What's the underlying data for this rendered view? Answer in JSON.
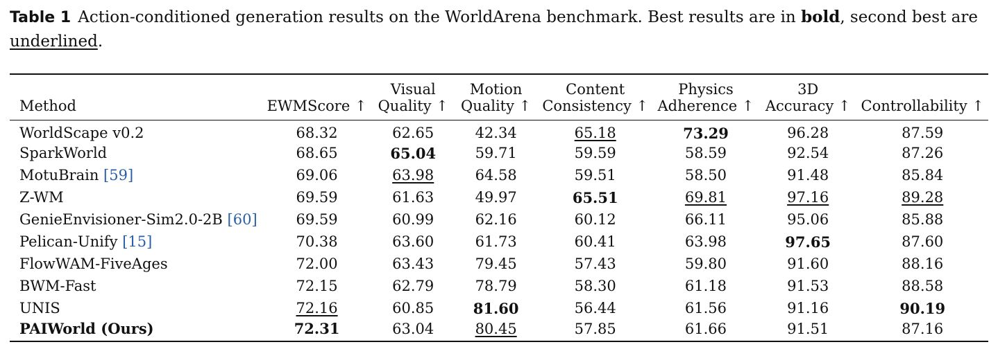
{
  "caption": {
    "label": "Table 1",
    "text_1": "Action-conditioned generation results on the WorldArena benchmark. Best results are in ",
    "bold_word": "bold",
    "text_2": ", second best are ",
    "underline_word": "underlined",
    "text_3": "."
  },
  "headers": {
    "method": "Method",
    "ewm_score": "EWMScore ↑",
    "visual_quality_1": "Visual",
    "visual_quality_2": "Quality ↑",
    "motion_quality_1": "Motion",
    "motion_quality_2": "Quality ↑",
    "content_consistency_1": "Content",
    "content_consistency_2": "Consistency ↑",
    "physics_adherence_1": "Physics",
    "physics_adherence_2": "Adherence ↑",
    "accuracy_3d_1": "3D",
    "accuracy_3d_2": "Accuracy ↑",
    "controllability": "Controllability ↑"
  },
  "rows": [
    {
      "method": "WorldScape v0.2",
      "cite": "",
      "ewm": "68.32",
      "visual": "62.65",
      "motion": "42.34",
      "content": "65.18",
      "physics": "73.29",
      "acc3d": "96.28",
      "control": "87.59"
    },
    {
      "method": "SparkWorld",
      "cite": "",
      "ewm": "68.65",
      "visual": "65.04",
      "motion": "59.71",
      "content": "59.59",
      "physics": "58.59",
      "acc3d": "92.54",
      "control": "87.26"
    },
    {
      "method": "MotuBrain",
      "cite": "[59]",
      "ewm": "69.06",
      "visual": "63.98",
      "motion": "64.58",
      "content": "59.51",
      "physics": "58.50",
      "acc3d": "91.48",
      "control": "85.84"
    },
    {
      "method": "Z-WM",
      "cite": "",
      "ewm": "69.59",
      "visual": "61.63",
      "motion": "49.97",
      "content": "65.51",
      "physics": "69.81",
      "acc3d": "97.16",
      "control": "89.28"
    },
    {
      "method": "GenieEnvisioner-Sim2.0-2B",
      "cite": "[60]",
      "ewm": "69.59",
      "visual": "60.99",
      "motion": "62.16",
      "content": "60.12",
      "physics": "66.11",
      "acc3d": "95.06",
      "control": "85.88"
    },
    {
      "method": "Pelican-Unify",
      "cite": "[15]",
      "ewm": "70.38",
      "visual": "63.60",
      "motion": "61.73",
      "content": "60.41",
      "physics": "63.98",
      "acc3d": "97.65",
      "control": "87.60"
    },
    {
      "method": "FlowWAM-FiveAges",
      "cite": "",
      "ewm": "72.00",
      "visual": "63.43",
      "motion": "79.45",
      "content": "57.43",
      "physics": "59.80",
      "acc3d": "91.60",
      "control": "88.16"
    },
    {
      "method": "BWM-Fast",
      "cite": "",
      "ewm": "72.15",
      "visual": "62.79",
      "motion": "78.79",
      "content": "58.30",
      "physics": "61.18",
      "acc3d": "91.53",
      "control": "88.58"
    },
    {
      "method": "UNIS",
      "cite": "",
      "ewm": "72.16",
      "visual": "60.85",
      "motion": "81.60",
      "content": "56.44",
      "physics": "61.56",
      "acc3d": "91.16",
      "control": "90.19"
    },
    {
      "method": "PAIWorld (Ours)",
      "cite": "",
      "ewm": "72.31",
      "visual": "63.04",
      "motion": "80.45",
      "content": "57.85",
      "physics": "61.66",
      "acc3d": "91.51",
      "control": "87.16"
    }
  ]
}
